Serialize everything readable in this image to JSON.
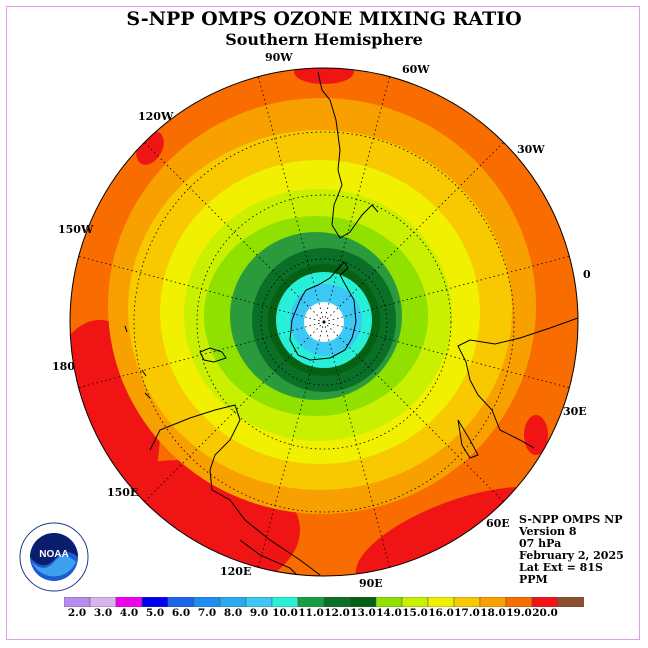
{
  "title": "S-NPP OMPS OZONE MIXING RATIO",
  "subtitle": "Southern Hemisphere",
  "map": {
    "projection": "south-polar-stereographic",
    "lat_extent": "81S",
    "longitude_labels": [
      "90W",
      "60W",
      "30W",
      "0",
      "30E",
      "60E",
      "90E",
      "120E",
      "150E",
      "180",
      "150W",
      "120W"
    ],
    "coastlines_shown": true,
    "graticule": "dotted"
  },
  "info": {
    "line1": "S-NPP OMPS NP",
    "line2": "Version 8",
    "line3": "07 hPa",
    "line4": "February 2, 2025",
    "line5": "Lat Ext = 81S",
    "line6": "PPM"
  },
  "colorbar": {
    "labels": [
      "2.0",
      "3.0",
      "4.0",
      "5.0",
      "6.0",
      "7.0",
      "8.0",
      "9.0",
      "10.0",
      "11.0",
      "12.0",
      "13.0",
      "14.0",
      "15.0",
      "16.0",
      "17.0",
      "18.0",
      "19.0",
      "20.0"
    ],
    "colors": [
      "#b58cf0",
      "#d8b4f0",
      "#ee00ee",
      "#0000f0",
      "#1a64ee",
      "#1e8cf0",
      "#28aaf0",
      "#3cc8f4",
      "#28f0d8",
      "#14a040",
      "#0a7028",
      "#066014",
      "#90e000",
      "#c8f000",
      "#f0f000",
      "#f8c800",
      "#f8a000",
      "#f86c00",
      "#f01414",
      "#8c5030"
    ]
  },
  "field_colors": {
    "center_low": "#ffffff",
    "c9": "#3cc8f4",
    "c10": "#28f0d8",
    "c11": "#0a7028",
    "c12": "#2a9a3c",
    "c13": "#90e000",
    "c14": "#c8f000",
    "c15": "#f0f000",
    "c16": "#f8c800",
    "c17": "#f8a000",
    "c18": "#f86c00",
    "c19": "#f01414"
  },
  "logo_text": "NOAA"
}
